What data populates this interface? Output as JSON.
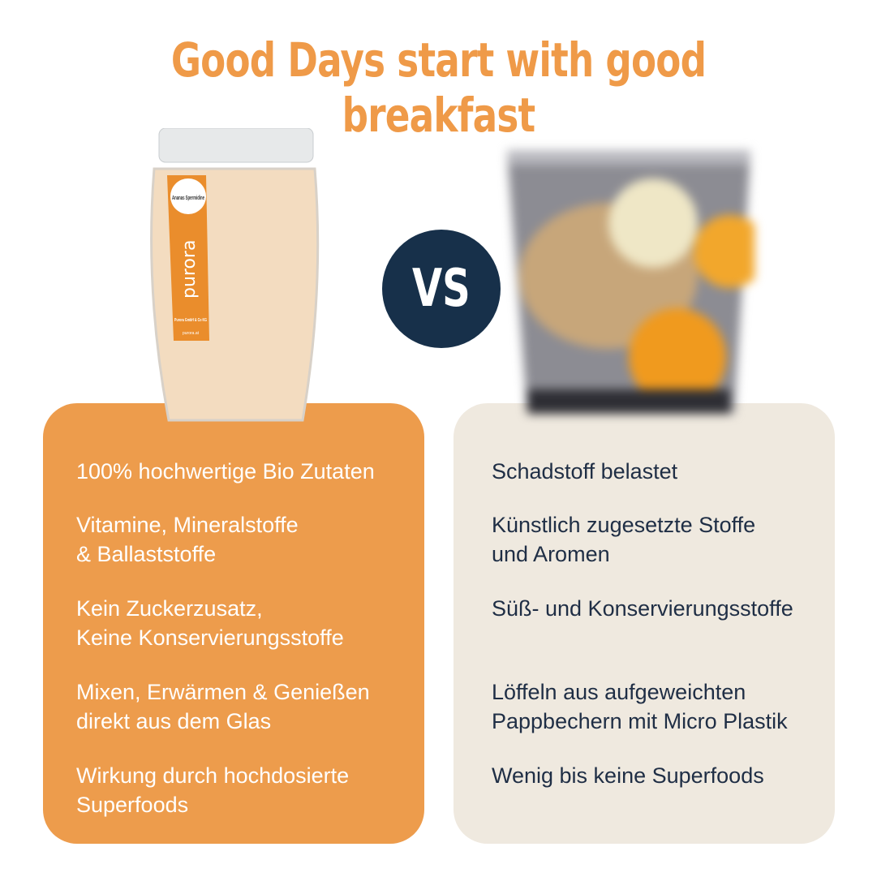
{
  "headline": "Good Days start with good breakfast",
  "vs_badge": "VS",
  "product": {
    "label_flavor": "Ananas Spermidine",
    "brand": "purora",
    "label_address": "Purora GmbH & Co KG",
    "label_web": "purora.at"
  },
  "left_card": {
    "items": [
      "100% hochwertige Bio Zutaten",
      "Vitamine, Mineralstoffe\n& Ballaststoffe",
      "Kein Zuckerzusatz,\nKeine Konservierungsstoffe",
      "Mixen, Erwärmen & Genießen\ndirekt aus dem Glas",
      "Wirkung durch hochdosierte\nSuperfoods"
    ]
  },
  "right_card": {
    "items": [
      "Schadstoff belastet",
      "Künstlich zugesetzte Stoffe\nund Aromen",
      "Süß- und Konservierungsstoffe",
      "Löffeln aus aufgeweichten\nPappbechern mit Micro Plastik",
      "Wenig bis keine Superfoods"
    ]
  },
  "colors": {
    "accent": "#ef9a48",
    "left_card": "#ed9c4c",
    "right_card": "#efe9df",
    "badge": "#17304a",
    "right_text": "#1f2e45"
  }
}
